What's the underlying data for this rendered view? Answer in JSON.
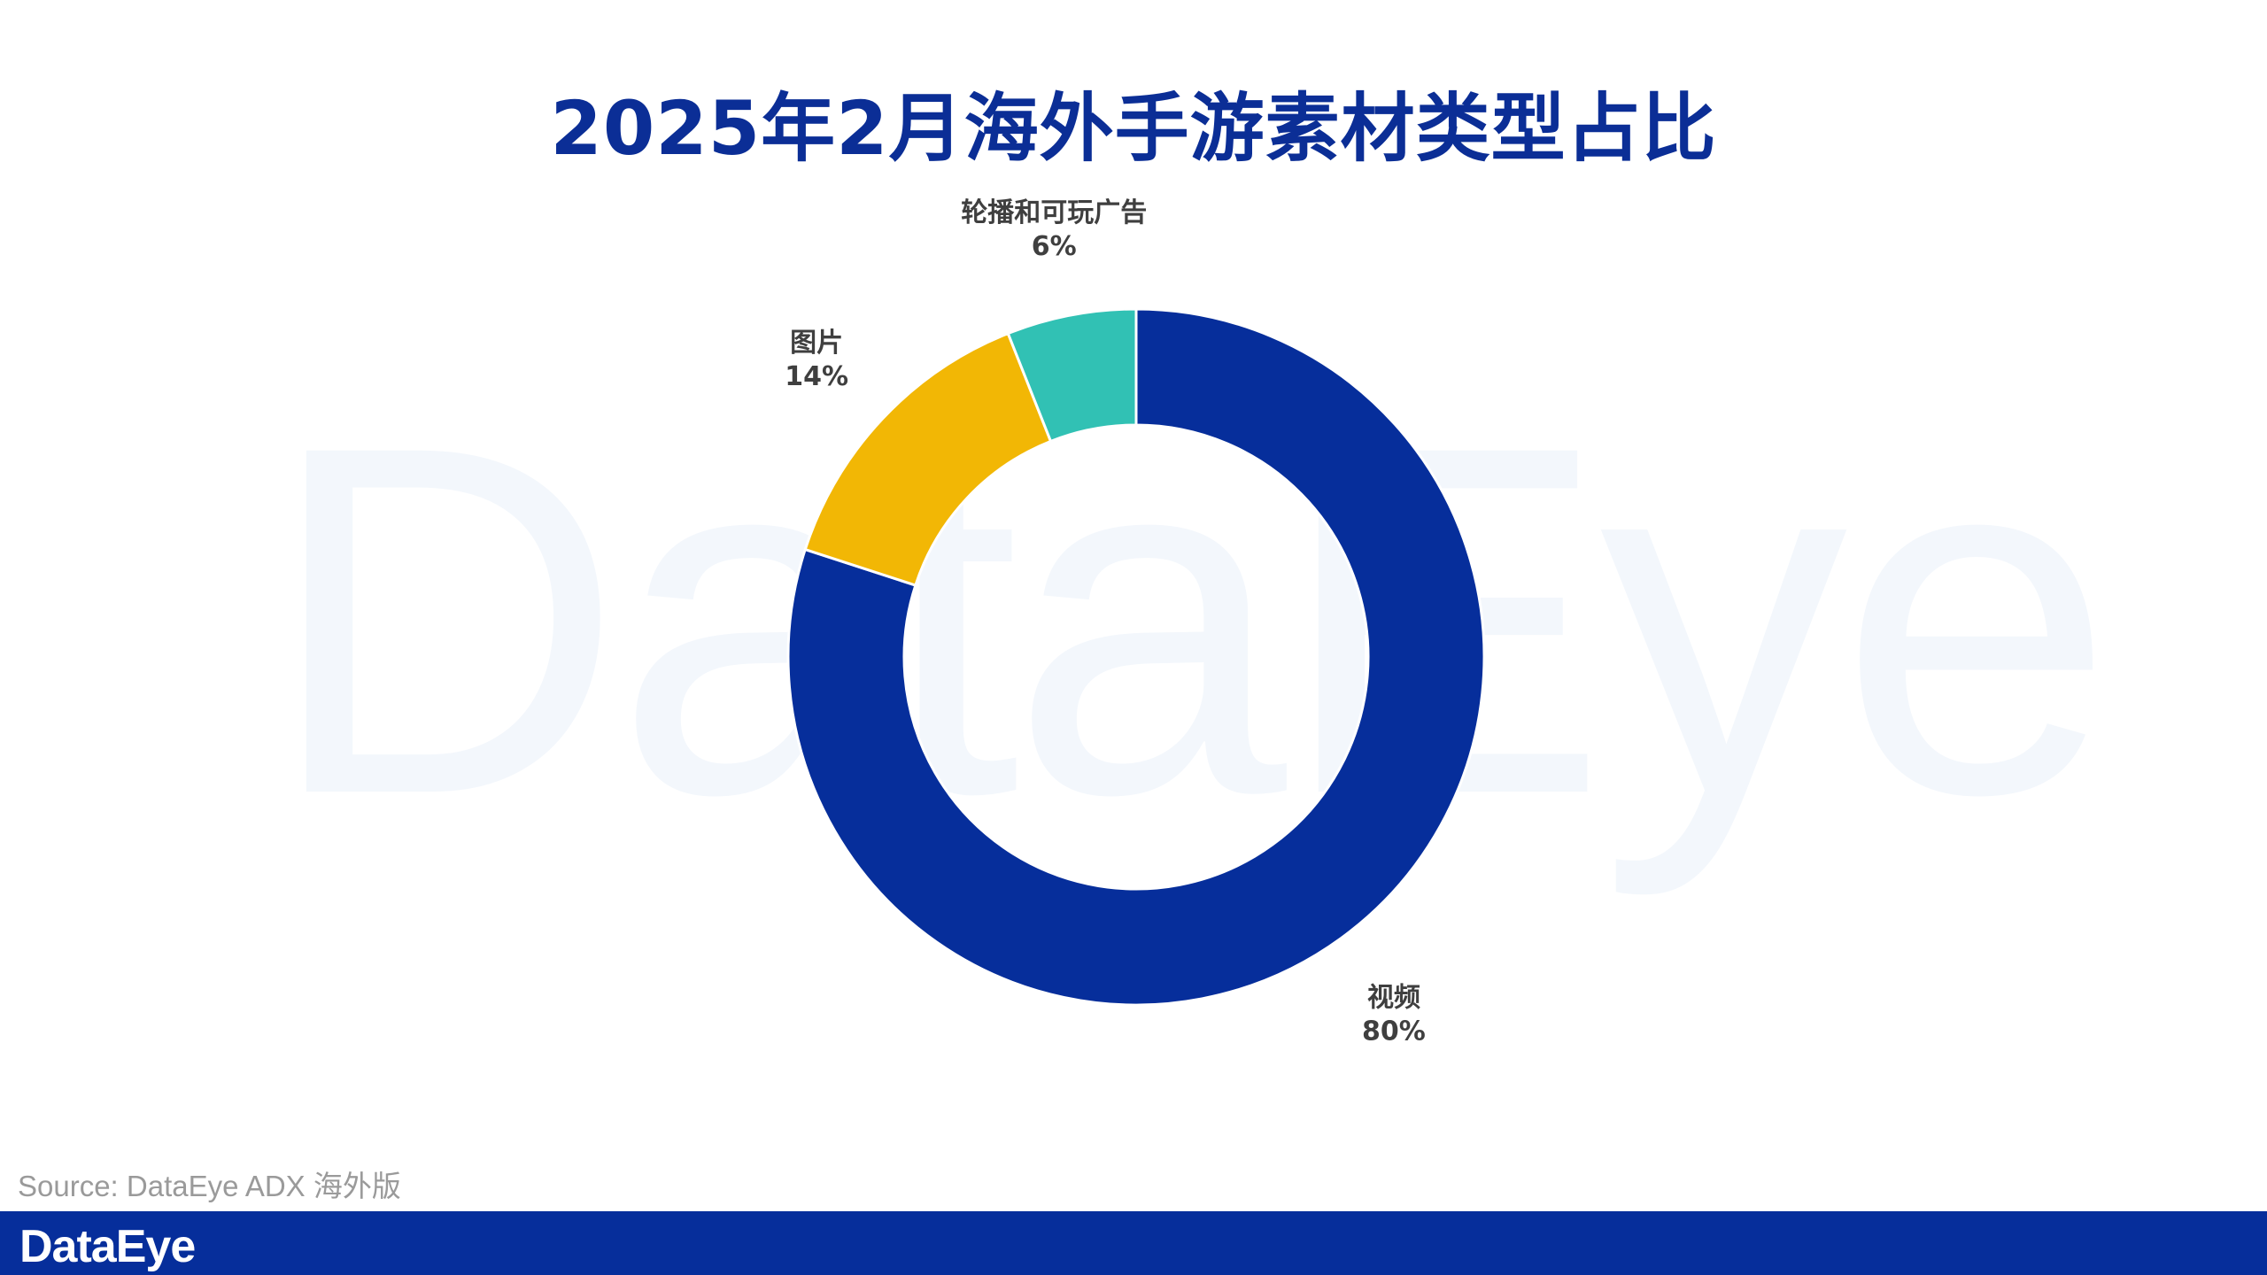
{
  "page": {
    "title": "2025年2月海外手游素材类型占比",
    "watermark": "DataEye",
    "source": "Source: DataEye ADX 海外版",
    "footer_brand": "DataEye"
  },
  "chart_data": {
    "type": "pie",
    "variant": "donut",
    "title": "2025年2月海外手游素材类型占比",
    "start": "12 o'clock",
    "direction": "clockwise",
    "legend": "none",
    "slices": [
      {
        "label": "视频",
        "value": 80,
        "value_label": "80%",
        "color": "#062e9b"
      },
      {
        "label": "图片",
        "value": 14,
        "value_label": "14%",
        "color": "#f2b705"
      },
      {
        "label": "轮播和可玩广告",
        "value": 6,
        "value_label": "6%",
        "color": "#31c1b4"
      }
    ]
  }
}
